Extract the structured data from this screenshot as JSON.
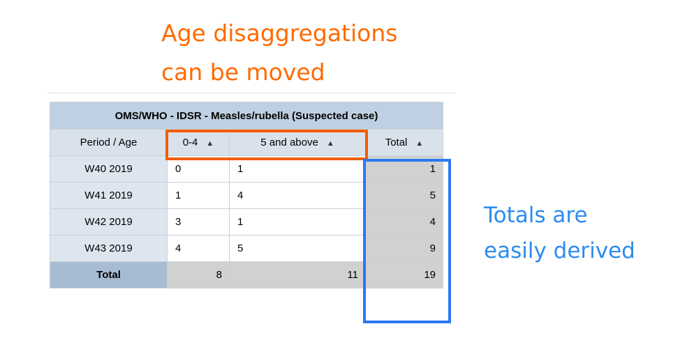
{
  "annotations": {
    "top_line1": "Age disaggregations",
    "top_line2": "can be moved",
    "right_line1": "Totals are",
    "right_line2": "easily derived",
    "top_color": "#ff6a00",
    "right_color": "#2d8cf0"
  },
  "table": {
    "title": "OMS/WHO - IDSR - Measles/rubella (Suspected case)",
    "corner_label": "Period / Age",
    "columns": [
      {
        "label": "0-4",
        "sort_icon": "sort-icon"
      },
      {
        "label": "5 and above",
        "sort_icon": "sort-icon"
      },
      {
        "label": "Total",
        "sort_icon": "sort-icon"
      }
    ],
    "rows": [
      {
        "period": "W40 2019",
        "age_0_4": "0",
        "age_5_above": "1",
        "total": "1"
      },
      {
        "period": "W41 2019",
        "age_0_4": "1",
        "age_5_above": "4",
        "total": "5"
      },
      {
        "period": "W42 2019",
        "age_0_4": "3",
        "age_5_above": "1",
        "total": "4"
      },
      {
        "period": "W43 2019",
        "age_0_4": "4",
        "age_5_above": "5",
        "total": "9"
      }
    ],
    "totals": {
      "label": "Total",
      "age_0_4": "8",
      "age_5_above": "11",
      "total": "19"
    }
  }
}
